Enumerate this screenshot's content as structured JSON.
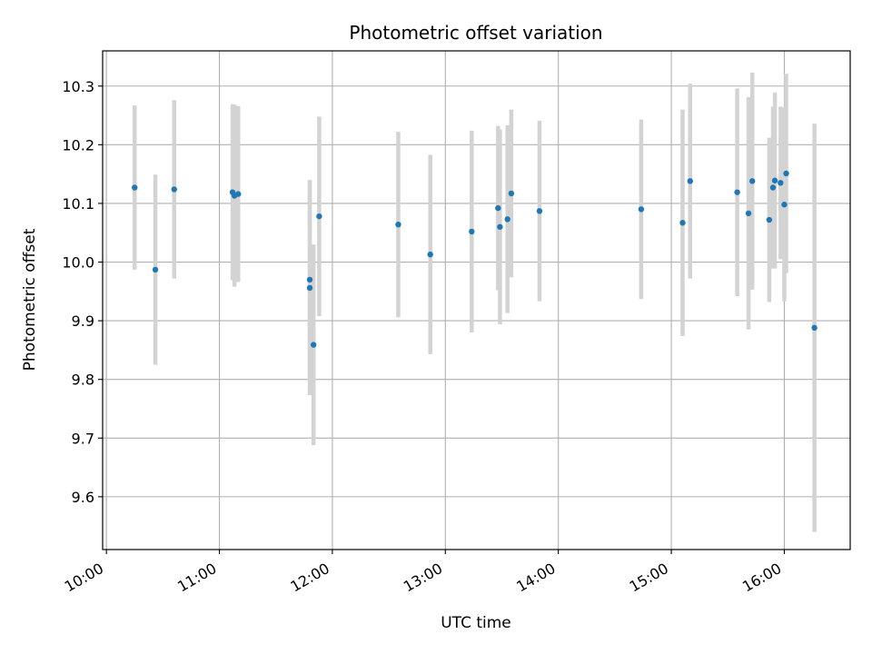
{
  "chart_data": {
    "type": "scatter",
    "title": "Photometric offset variation",
    "xlabel": "UTC time",
    "ylabel": "Photometric offset",
    "x_unit": "UTC time (HH:MM)",
    "xlim": [
      "09:58",
      "16:35"
    ],
    "ylim": [
      9.51,
      10.36
    ],
    "x_ticks": [
      "10:00",
      "11:00",
      "12:00",
      "13:00",
      "14:00",
      "15:00",
      "16:00"
    ],
    "y_ticks": [
      "9.6",
      "9.7",
      "9.8",
      "9.9",
      "10.0",
      "10.1",
      "10.2",
      "10.3"
    ],
    "grid": true,
    "point_color": "#1f77b4",
    "errorbar_color": "#d3d3d3",
    "series": [
      {
        "points": [
          {
            "x": "10:15",
            "y": 10.127,
            "err": 0.14
          },
          {
            "x": "10:26",
            "y": 9.987,
            "err": 0.162
          },
          {
            "x": "10:36",
            "y": 10.124,
            "err": 0.152
          },
          {
            "x": "11:07",
            "y": 10.119,
            "err": 0.15
          },
          {
            "x": "11:08",
            "y": 10.113,
            "err": 0.155
          },
          {
            "x": "11:10",
            "y": 10.116,
            "err": 0.15
          },
          {
            "x": "11:48",
            "y": 9.97,
            "err": 0.17
          },
          {
            "x": "11:48",
            "y": 9.956,
            "err": 0.183
          },
          {
            "x": "11:50",
            "y": 9.859,
            "err": 0.171
          },
          {
            "x": "11:53",
            "y": 10.078,
            "err": 0.17
          },
          {
            "x": "12:35",
            "y": 10.064,
            "err": 0.158
          },
          {
            "x": "12:52",
            "y": 10.013,
            "err": 0.17
          },
          {
            "x": "13:14",
            "y": 10.052,
            "err": 0.172
          },
          {
            "x": "13:28",
            "y": 10.092,
            "err": 0.14
          },
          {
            "x": "13:29",
            "y": 10.06,
            "err": 0.166
          },
          {
            "x": "13:33",
            "y": 10.073,
            "err": 0.16
          },
          {
            "x": "13:35",
            "y": 10.117,
            "err": 0.143
          },
          {
            "x": "13:50",
            "y": 10.087,
            "err": 0.154
          },
          {
            "x": "14:44",
            "y": 10.09,
            "err": 0.153
          },
          {
            "x": "15:06",
            "y": 10.067,
            "err": 0.193
          },
          {
            "x": "15:10",
            "y": 10.138,
            "err": 0.166
          },
          {
            "x": "15:35",
            "y": 10.119,
            "err": 0.177
          },
          {
            "x": "15:41",
            "y": 10.083,
            "err": 0.198
          },
          {
            "x": "15:43",
            "y": 10.138,
            "err": 0.185
          },
          {
            "x": "15:52",
            "y": 10.072,
            "err": 0.14
          },
          {
            "x": "15:54",
            "y": 10.127,
            "err": 0.138
          },
          {
            "x": "15:55",
            "y": 10.139,
            "err": 0.15
          },
          {
            "x": "15:58",
            "y": 10.135,
            "err": 0.13
          },
          {
            "x": "16:00",
            "y": 10.098,
            "err": 0.165
          },
          {
            "x": "16:01",
            "y": 10.151,
            "err": 0.17
          },
          {
            "x": "16:16",
            "y": 9.888,
            "err": 0.348
          }
        ]
      }
    ]
  }
}
